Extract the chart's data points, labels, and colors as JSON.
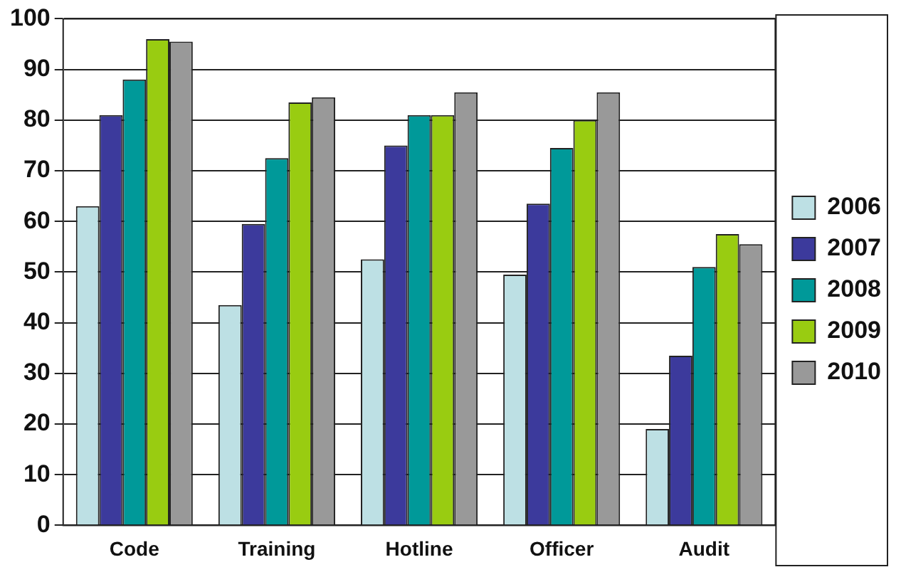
{
  "chart_data": {
    "type": "bar",
    "categories": [
      "Code",
      "Training",
      "Hotline",
      "Officer",
      "Audit"
    ],
    "series": [
      {
        "name": "2006",
        "color": "#bde0e4",
        "values": [
          63,
          43.5,
          52.5,
          49.5,
          19
        ]
      },
      {
        "name": "2007",
        "color": "#3c3a9c",
        "values": [
          81,
          59.5,
          75,
          63.5,
          33.5
        ]
      },
      {
        "name": "2008",
        "color": "#009999",
        "values": [
          88,
          72.5,
          81,
          74.5,
          51
        ]
      },
      {
        "name": "2009",
        "color": "#99cc11",
        "values": [
          96,
          83.5,
          81,
          80,
          57.5
        ]
      },
      {
        "name": "2010",
        "color": "#999999",
        "values": [
          95.5,
          84.5,
          85.5,
          85.5,
          55.5
        ]
      }
    ],
    "ylim": [
      0,
      100
    ],
    "yticks": [
      0,
      10,
      20,
      30,
      40,
      50,
      60,
      70,
      80,
      90,
      100
    ],
    "grid": "y",
    "legend": "right"
  }
}
